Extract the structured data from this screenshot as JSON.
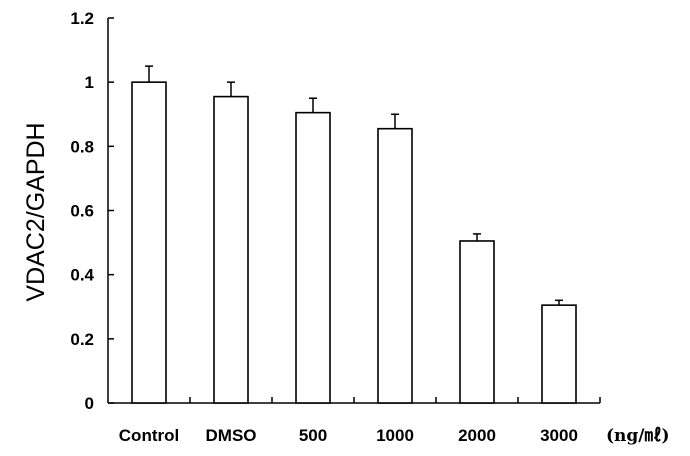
{
  "chart_data": {
    "type": "bar",
    "categories": [
      "Control",
      "DMSO",
      "500",
      "1000",
      "2000",
      "3000"
    ],
    "series": [
      {
        "values": [
          1.0,
          0.955,
          0.905,
          0.855,
          0.505,
          0.305
        ],
        "error_plus": [
          0.05,
          0.045,
          0.045,
          0.045,
          0.022,
          0.015
        ]
      }
    ],
    "title": "",
    "xlabel": "",
    "x_unit": "(ng/㎖)",
    "ylabel": "VDAC2/GAPDH",
    "ylim": [
      0,
      1.2
    ],
    "yticks": [
      0,
      0.2,
      0.4,
      0.6,
      0.8,
      1,
      1.2
    ],
    "ytick_labels": [
      "0",
      "0.2",
      "0.4",
      "0.6",
      "0.8",
      "1",
      "1.2"
    ],
    "grid": false,
    "legend": "none",
    "bar_fill": "#ffffff",
    "bar_stroke": "#000000"
  }
}
